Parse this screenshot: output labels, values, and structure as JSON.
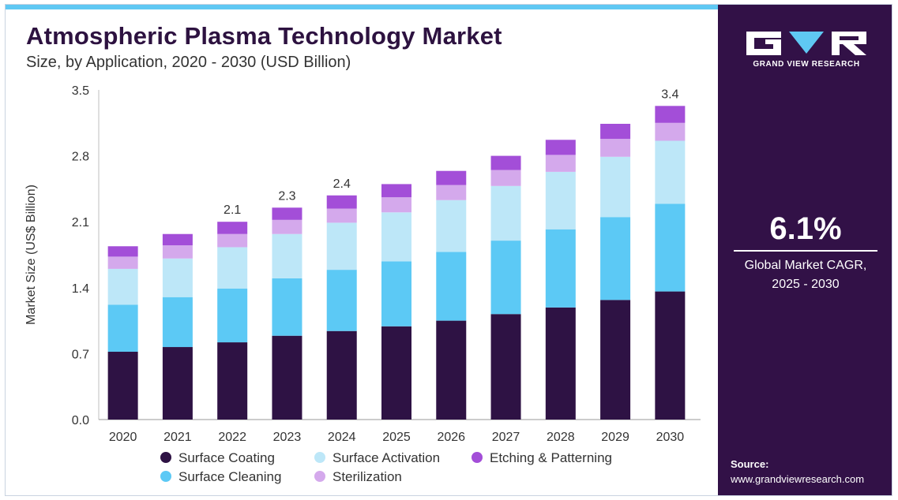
{
  "title": "Atmospheric Plasma Technology Market",
  "subtitle": "Size, by Application, 2020 - 2030 (USD Billion)",
  "brand": {
    "name": "GRAND VIEW RESEARCH",
    "panel_color": "#321147",
    "accent_color": "#5fc8f3"
  },
  "cagr": {
    "value": "6.1%",
    "label_line1": "Global Market CAGR,",
    "label_line2": "2025 - 2030"
  },
  "source": {
    "title": "Source:",
    "url": "www.grandviewresearch.com"
  },
  "chart_data": {
    "type": "bar",
    "stacked": true,
    "title": "Atmospheric Plasma Technology Market",
    "subtitle": "Size, by Application, 2020 - 2030 (USD Billion)",
    "xlabel": "",
    "ylabel": "Market Size (US$ Billion)",
    "ylim": [
      0,
      3.5
    ],
    "yticks": [
      "0.0",
      "0.7",
      "1.4",
      "2.1",
      "2.8",
      "3.5"
    ],
    "grid": false,
    "legend_position": "bottom",
    "categories": [
      "2020",
      "2021",
      "2022",
      "2023",
      "2024",
      "2025",
      "2026",
      "2027",
      "2028",
      "2029",
      "2030"
    ],
    "series": [
      {
        "name": "Surface Coating",
        "color": "#2e1244",
        "values": [
          0.72,
          0.77,
          0.82,
          0.89,
          0.94,
          0.99,
          1.05,
          1.12,
          1.19,
          1.27,
          1.36
        ]
      },
      {
        "name": "Surface Cleaning",
        "color": "#5cc9f5",
        "values": [
          0.5,
          0.53,
          0.57,
          0.61,
          0.65,
          0.69,
          0.73,
          0.78,
          0.83,
          0.88,
          0.93
        ]
      },
      {
        "name": "Surface Activation",
        "color": "#bde7f8",
        "values": [
          0.38,
          0.41,
          0.44,
          0.47,
          0.5,
          0.52,
          0.55,
          0.58,
          0.61,
          0.64,
          0.67
        ]
      },
      {
        "name": "Sterilization",
        "color": "#d4a9ec",
        "values": [
          0.13,
          0.14,
          0.14,
          0.15,
          0.15,
          0.16,
          0.16,
          0.17,
          0.18,
          0.19,
          0.19
        ]
      },
      {
        "name": "Etching & Patterning",
        "color": "#a34ed8",
        "values": [
          0.11,
          0.12,
          0.13,
          0.13,
          0.14,
          0.14,
          0.15,
          0.15,
          0.16,
          0.16,
          0.18
        ]
      }
    ],
    "legend_order": [
      "Surface Coating",
      "Surface Activation",
      "Etching & Patterning",
      "Surface Cleaning",
      "Sterilization"
    ],
    "total_labels": [
      {
        "category": "2022",
        "text": "2.1"
      },
      {
        "category": "2023",
        "text": "2.3"
      },
      {
        "category": "2024",
        "text": "2.4"
      },
      {
        "category": "2030",
        "text": "3.4"
      }
    ]
  }
}
